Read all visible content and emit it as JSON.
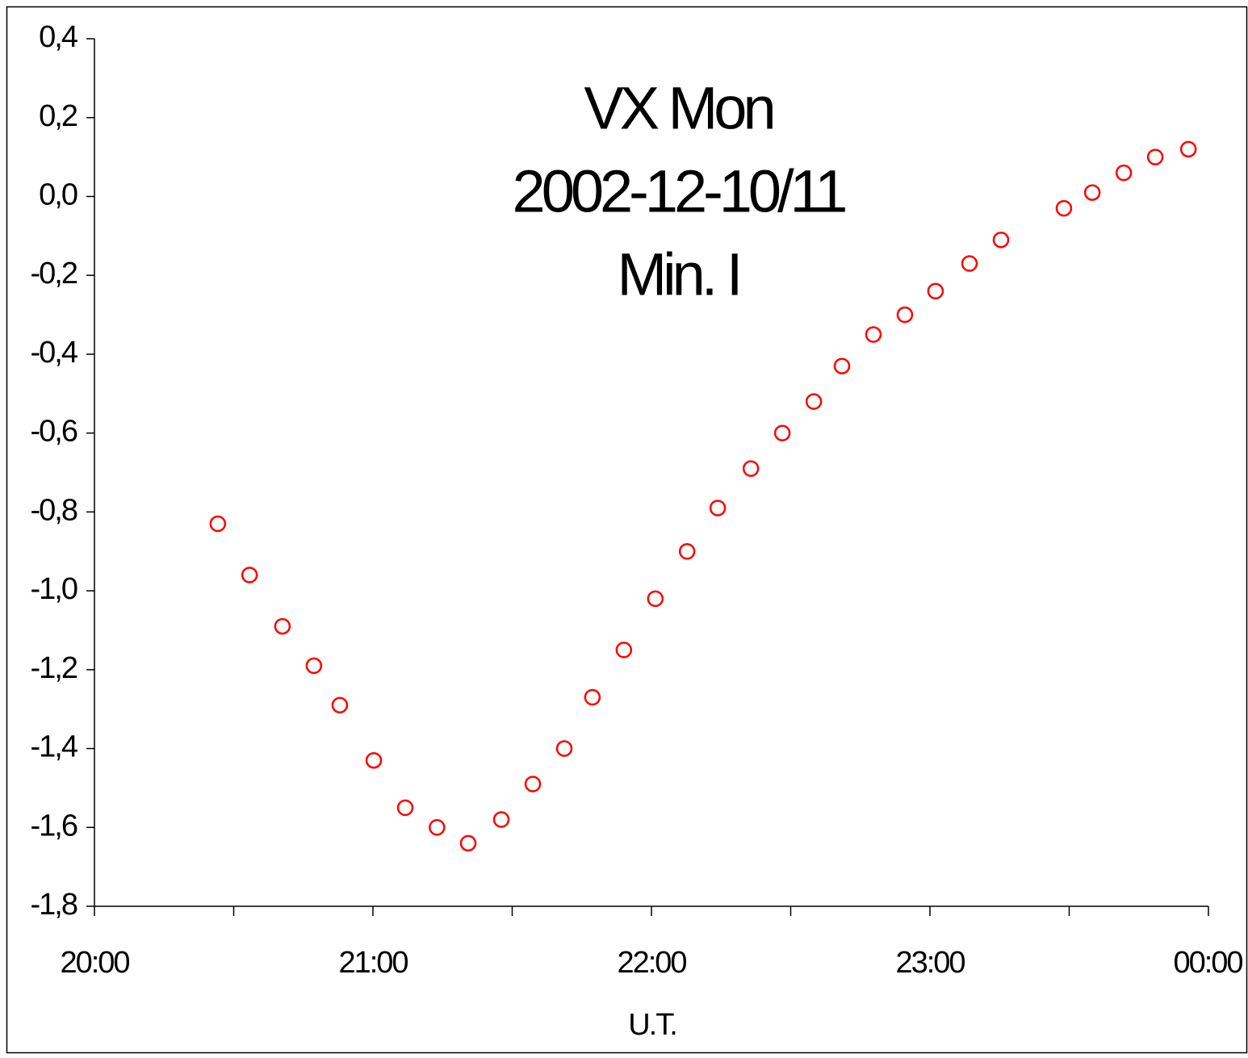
{
  "chart_data": {
    "type": "scatter",
    "title": [
      "VX Mon",
      "2002-12-10/11",
      "Min. I"
    ],
    "xlabel": "U.T.",
    "color": "#ff0000",
    "x": [
      20.443,
      20.557,
      20.675,
      20.788,
      20.881,
      21.003,
      21.116,
      21.23,
      21.342,
      21.461,
      21.574,
      21.687,
      21.788,
      21.901,
      22.014,
      22.128,
      22.238,
      22.357,
      22.47,
      22.583,
      22.684,
      22.797,
      22.91,
      23.02,
      23.142,
      23.255,
      23.481,
      23.583,
      23.696,
      23.809,
      23.928
    ],
    "values": [
      -0.83,
      -0.96,
      -1.09,
      -1.19,
      -1.29,
      -1.43,
      -1.55,
      -1.6,
      -1.64,
      -1.58,
      -1.49,
      -1.4,
      -1.27,
      -1.15,
      -1.02,
      -0.9,
      -0.79,
      -0.69,
      -0.6,
      -0.52,
      -0.43,
      -0.35,
      -0.3,
      -0.24,
      -0.17,
      -0.11,
      -0.03,
      0.01,
      0.06,
      0.1,
      0.12
    ],
    "xlim": [
      20,
      24
    ],
    "xticks": [
      {
        "value": 20,
        "label": "20:00"
      },
      {
        "value": 21,
        "label": "21:00"
      },
      {
        "value": 22,
        "label": "22:00"
      },
      {
        "value": 23,
        "label": "23:00"
      },
      {
        "value": 24,
        "label": "00:00"
      }
    ],
    "xticks_minor": [
      20.5,
      21.5,
      22.5,
      23.5
    ],
    "ylim": [
      -1.8,
      0.4
    ],
    "yticks": [
      {
        "value": 0.4,
        "label": "0,4"
      },
      {
        "value": 0.2,
        "label": "0,2"
      },
      {
        "value": 0,
        "label": "0,0"
      },
      {
        "value": -0.2,
        "label": "-0,2"
      },
      {
        "value": -0.4,
        "label": "-0,4"
      },
      {
        "value": -0.6,
        "label": "-0,6"
      },
      {
        "value": -0.8,
        "label": "-0,8"
      },
      {
        "value": -1,
        "label": "-1,0"
      },
      {
        "value": -1.2,
        "label": "-1,2"
      },
      {
        "value": -1.4,
        "label": "-1,4"
      },
      {
        "value": -1.6,
        "label": "-1,6"
      },
      {
        "value": -1.8,
        "label": "-1,8"
      }
    ],
    "grid": false
  }
}
